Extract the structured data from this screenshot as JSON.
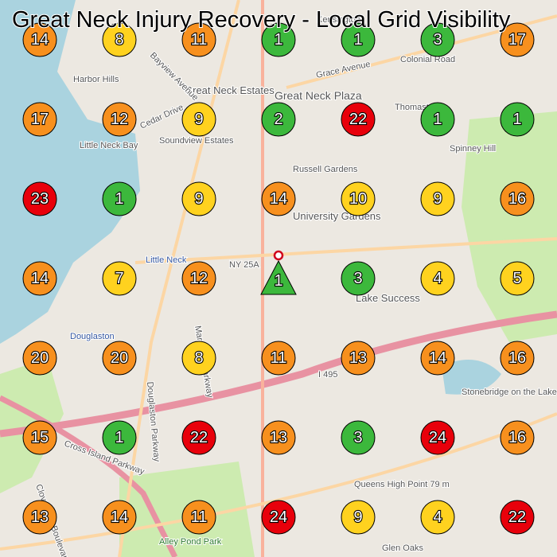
{
  "title": "Great Neck Injury Recovery - Local Grid Visibility",
  "grid": {
    "rows": [
      [
        {
          "rank": 14,
          "color": "#f7901e"
        },
        {
          "rank": 8,
          "color": "#ffd21f"
        },
        {
          "rank": 11,
          "color": "#f7901e"
        },
        {
          "rank": 1,
          "color": "#3cb83c"
        },
        {
          "rank": 1,
          "color": "#3cb83c"
        },
        {
          "rank": 3,
          "color": "#3cb83c"
        },
        {
          "rank": 17,
          "color": "#f7901e"
        }
      ],
      [
        {
          "rank": 17,
          "color": "#f7901e"
        },
        {
          "rank": 12,
          "color": "#f7901e"
        },
        {
          "rank": 9,
          "color": "#ffd21f"
        },
        {
          "rank": 2,
          "color": "#3cb83c"
        },
        {
          "rank": 22,
          "color": "#e8000b"
        },
        {
          "rank": 1,
          "color": "#3cb83c"
        },
        {
          "rank": 1,
          "color": "#3cb83c"
        }
      ],
      [
        {
          "rank": 23,
          "color": "#e8000b"
        },
        {
          "rank": 1,
          "color": "#3cb83c"
        },
        {
          "rank": 9,
          "color": "#ffd21f"
        },
        {
          "rank": 14,
          "color": "#f7901e"
        },
        {
          "rank": 10,
          "color": "#ffd21f"
        },
        {
          "rank": 9,
          "color": "#ffd21f"
        },
        {
          "rank": 16,
          "color": "#f7901e"
        }
      ],
      [
        {
          "rank": 14,
          "color": "#f7901e"
        },
        {
          "rank": 7,
          "color": "#ffd21f"
        },
        {
          "rank": 12,
          "color": "#f7901e"
        },
        {
          "rank": 1,
          "color": "#3cb83c",
          "marker": "triangle"
        },
        {
          "rank": 3,
          "color": "#3cb83c"
        },
        {
          "rank": 4,
          "color": "#ffd21f"
        },
        {
          "rank": 5,
          "color": "#ffd21f"
        }
      ],
      [
        {
          "rank": 20,
          "color": "#f7901e"
        },
        {
          "rank": 20,
          "color": "#f7901e"
        },
        {
          "rank": 8,
          "color": "#ffd21f"
        },
        {
          "rank": 11,
          "color": "#f7901e"
        },
        {
          "rank": 13,
          "color": "#f7901e"
        },
        {
          "rank": 14,
          "color": "#f7901e"
        },
        {
          "rank": 16,
          "color": "#f7901e"
        }
      ],
      [
        {
          "rank": 15,
          "color": "#f7901e"
        },
        {
          "rank": 1,
          "color": "#3cb83c"
        },
        {
          "rank": 22,
          "color": "#e8000b"
        },
        {
          "rank": 13,
          "color": "#f7901e"
        },
        {
          "rank": 3,
          "color": "#3cb83c"
        },
        {
          "rank": 24,
          "color": "#e8000b"
        },
        {
          "rank": 16,
          "color": "#f7901e"
        }
      ],
      [
        {
          "rank": 13,
          "color": "#f7901e"
        },
        {
          "rank": 14,
          "color": "#f7901e"
        },
        {
          "rank": 11,
          "color": "#f7901e"
        },
        {
          "rank": 24,
          "color": "#e8000b"
        },
        {
          "rank": 9,
          "color": "#ffd21f"
        },
        {
          "rank": 4,
          "color": "#ffd21f"
        },
        {
          "rank": 22,
          "color": "#e8000b"
        }
      ]
    ]
  },
  "map_labels": [
    "Kensington",
    "Great Neck Plaza",
    "Grace Avenue",
    "Colonial Road",
    "Harbor Hills",
    "Great Neck Estates",
    "Russell Gardens",
    "University Gardens",
    "Little Neck",
    "NY 25A",
    "Lake Success",
    "Douglaston",
    "I 495",
    "Queens High Point 79 m",
    "Glen Oaks",
    "Alley Pond Park",
    "Cross Island Parkway",
    "Douglaston Parkway",
    "Little Neck Bay",
    "Stonebridge on the Lake",
    "Thomaston",
    "Cedar Drive",
    "Soundview Estates",
    "Bayview Avenue",
    "Marathon Parkway",
    "Cloverdale Boulevard",
    "Spinney Hill"
  ]
}
